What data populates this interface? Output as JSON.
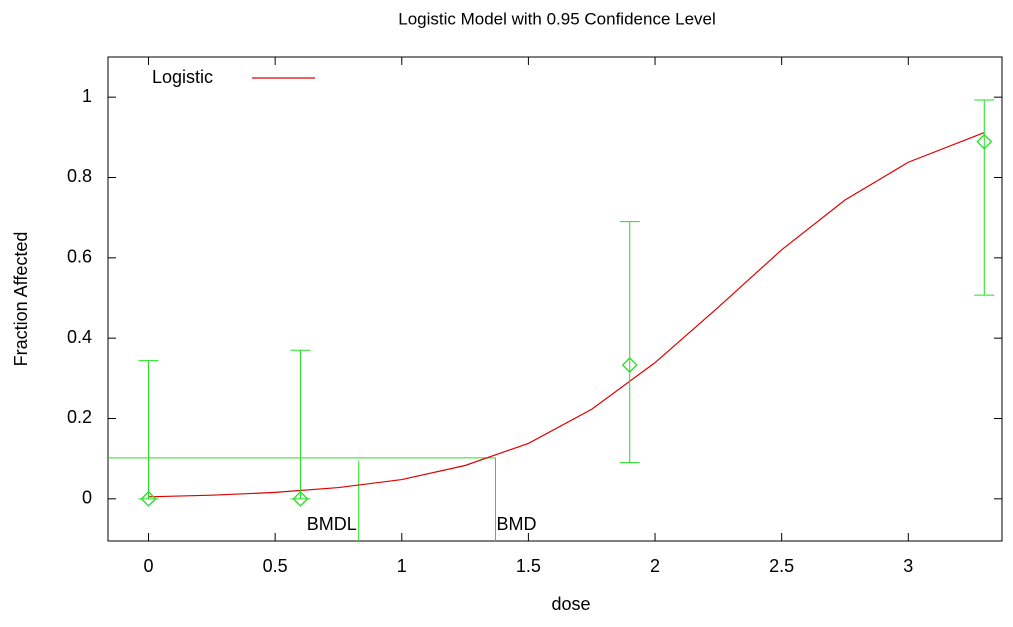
{
  "chart_data": {
    "type": "line",
    "title": "Logistic Model with 0.95 Confidence Level",
    "x_label": "dose",
    "y_label": "Fraction Affected",
    "xlim": [
      -0.16,
      3.37
    ],
    "ylim": [
      -0.105,
      1.1
    ],
    "xticks": [
      0,
      0.5,
      1,
      1.5,
      2,
      2.5,
      3
    ],
    "yticks": [
      0,
      0.2,
      0.4,
      0.6,
      0.8,
      1
    ],
    "legend": "upper left",
    "series": [
      {
        "name": "Logistic",
        "color": "#e00000",
        "x": [
          0,
          0.25,
          0.5,
          0.75,
          1,
          1.25,
          1.5,
          1.75,
          2,
          2.25,
          2.5,
          2.75,
          3,
          3.3
        ],
        "values": [
          0.005,
          0.009,
          0.016,
          0.028,
          0.048,
          0.083,
          0.138,
          0.223,
          0.339,
          0.477,
          0.62,
          0.744,
          0.838,
          0.912
        ]
      }
    ],
    "observed": {
      "color": "#22e022",
      "x": [
        0,
        0.6,
        1.9,
        3.3
      ],
      "values": [
        0,
        0,
        0.333,
        0.889
      ],
      "ci_lower": [
        0,
        0,
        0.09,
        0.507
      ],
      "ci_upper": [
        0.344,
        0.37,
        0.69,
        0.993
      ]
    },
    "bmr": 0.102,
    "bmd": {
      "label": "BMD",
      "value": 1.37
    },
    "bmdl": {
      "label": "BMDL",
      "value": 0.83,
      "top": 0.095
    }
  }
}
